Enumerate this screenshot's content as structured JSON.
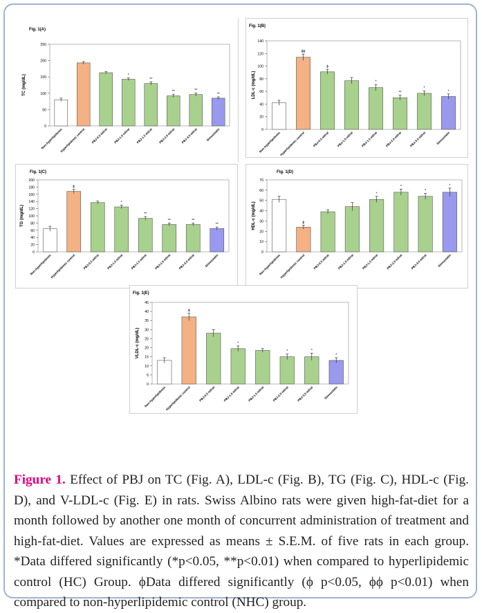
{
  "caption": {
    "lead": "Figure 1.",
    "text": " Effect of PBJ on TC (Fig. A), LDL-c (Fig. B), TG (Fig. C), HDL-c (Fig. D), and V-LDL-c (Fig. E) in rats. Swiss Albino rats were given high-fat-diet for a month followed by another one month of concurrent administration of treatment and high-fat-diet. Values are expressed as means ± S.E.M. of five rats in each group. *Data differed significantly (*p<0.05, **p<0.01) when compared to hyperlipidemic control (HC) Group. ϕData differed significantly (ϕ p<0.05, ϕϕ p<0.01) when compared to non-hyperlipidemic control (NHC) group."
  },
  "colors": {
    "white_bar": "#ffffff",
    "orange_bar": "#f4b183",
    "green_bar": "#a9d18e",
    "blue_bar": "#9999ee",
    "bar_stroke": "#555555",
    "frame": "#9fb3cf",
    "caption_lead": "#e6007e"
  },
  "chart_data": [
    {
      "id": "A",
      "type": "bar",
      "title": "Fig. 1(A)",
      "ylabel": "TC (mg/dL)",
      "ylim": [
        0,
        250
      ],
      "yticks": [
        0,
        50,
        100,
        150,
        200,
        250
      ],
      "categories": [
        "Non-hyperlipidemic",
        "Hyperlipidemic control",
        "PBJ-0.5 ml/rat",
        "PBJ-1.0 ml/rat",
        "PBJ-1.5 ml/rat",
        "PBJ-2.0 ml/rat",
        "PBJ-3.0 ml/rat",
        "Simvastatin"
      ],
      "values": [
        80,
        193,
        163,
        143,
        130,
        92,
        96,
        85
      ],
      "errors": [
        5,
        4,
        4,
        4,
        5,
        5,
        5,
        4
      ],
      "annotations": [
        "",
        "",
        "",
        "*",
        "**",
        "**",
        "**",
        "**"
      ],
      "bar_colors": [
        "white",
        "orange",
        "green",
        "green",
        "green",
        "green",
        "green",
        "blue"
      ]
    },
    {
      "id": "B",
      "type": "bar",
      "title": "Fig. 1(B)",
      "ylabel": "LDL-c (mg/dL)",
      "ylim": [
        0,
        140
      ],
      "yticks": [
        0,
        20,
        40,
        60,
        80,
        100,
        120,
        140
      ],
      "categories": [
        "Non-hyperlipidemic",
        "Hyperlipidemic control",
        "PBJ-0.5 ml/rat",
        "PBJ-1.0 ml/rat",
        "PBJ-1.5 ml/rat",
        "PBJ-2.0 ml/rat",
        "PBJ-3.0 ml/rat",
        "Simvastatin"
      ],
      "values": [
        42,
        114,
        91,
        77,
        66,
        50,
        57,
        52
      ],
      "errors": [
        4,
        5,
        4,
        5,
        5,
        4,
        4,
        4
      ],
      "annotations": [
        "",
        "ϕϕ",
        "ϕ",
        "",
        "*",
        "**",
        "*",
        "*"
      ],
      "bar_colors": [
        "white",
        "orange",
        "green",
        "green",
        "green",
        "green",
        "green",
        "blue"
      ]
    },
    {
      "id": "C",
      "type": "bar",
      "title": "Fig. 1(C)",
      "ylabel": "TG (mg/dL)",
      "ylim": [
        0,
        200
      ],
      "yticks": [
        0,
        20,
        40,
        60,
        80,
        100,
        120,
        140,
        160,
        180,
        200
      ],
      "categories": [
        "Non-hyperlipidemic",
        "Hyperlipidemic control",
        "PBJ-0.5 ml/rat",
        "PBJ-1.0 ml/rat",
        "PBJ-1.5 ml/rat",
        "PBJ-2.0 ml/rat",
        "PBJ-3.0 ml/rat",
        "Simvastatin"
      ],
      "values": [
        64,
        168,
        137,
        125,
        93,
        76,
        76,
        65
      ],
      "errors": [
        7,
        6,
        4,
        5,
        5,
        4,
        4,
        4
      ],
      "annotations": [
        "",
        "ϕ",
        "",
        "*",
        "**",
        "**",
        "**",
        "**"
      ],
      "bar_colors": [
        "white",
        "orange",
        "green",
        "green",
        "green",
        "green",
        "green",
        "blue"
      ]
    },
    {
      "id": "D",
      "type": "bar",
      "title": "Fig. 1(D)",
      "ylabel": "HDL-c (mg/dL)",
      "ylim": [
        0,
        70
      ],
      "yticks": [
        0,
        10,
        20,
        30,
        40,
        50,
        60,
        70
      ],
      "categories": [
        "Non-hyperlipidemic",
        "Hyperlipidemic control",
        "PBJ-0.5 ml/rat",
        "PBJ-1.0 ml/rat",
        "PBJ-1.5 ml/rat",
        "PBJ-2.0 ml/rat",
        "PBJ-3.0 ml/rat",
        "Simvastatin"
      ],
      "values": [
        51,
        24,
        39,
        44,
        51,
        58,
        54,
        58
      ],
      "errors": [
        3,
        2,
        2,
        4,
        3,
        3,
        3,
        4
      ],
      "annotations": [
        "",
        "ϕ",
        "",
        "",
        "*",
        "*",
        "*",
        "*"
      ],
      "bar_colors": [
        "white",
        "orange",
        "green",
        "green",
        "green",
        "green",
        "green",
        "blue"
      ]
    },
    {
      "id": "E",
      "type": "bar",
      "title": "Fig. 1(E)",
      "ylabel": "VLDL-c (mg/dL)",
      "ylim": [
        0,
        45
      ],
      "yticks": [
        0,
        5,
        10,
        15,
        20,
        25,
        30,
        35,
        40,
        45
      ],
      "categories": [
        "Non-hyperlipidemic",
        "Hyperlipidemic control",
        "PBJ-0.5 ml/rat",
        "PBJ-1.0 ml/rat",
        "PBJ-1.5 ml/rat",
        "PBJ-2.0 ml/rat",
        "PBJ-3.0 ml/rat",
        "Simvastatin"
      ],
      "values": [
        13,
        37,
        28,
        19.5,
        18.5,
        15,
        15,
        13
      ],
      "errors": [
        1.5,
        2,
        2,
        1.5,
        1,
        1.5,
        2,
        1.5
      ],
      "annotations": [
        "",
        "ϕ",
        "",
        "*",
        "",
        "*",
        "*",
        "*"
      ],
      "bar_colors": [
        "white",
        "orange",
        "green",
        "green",
        "green",
        "green",
        "green",
        "blue"
      ]
    }
  ]
}
